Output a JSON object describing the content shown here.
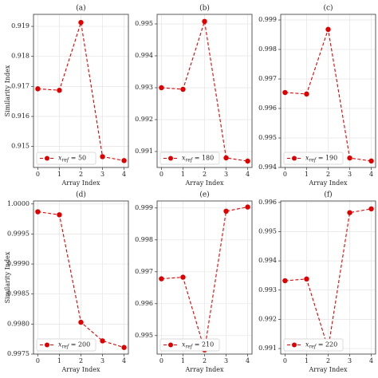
{
  "chart_data": [
    {
      "type": "line",
      "title": "(a)",
      "xlabel": "Array Index",
      "ylabel": "Similarity Index",
      "x": [
        0,
        1,
        2,
        3,
        4
      ],
      "series": [
        {
          "name": "xref = 50",
          "color": "#e00000",
          "values": [
            0.91692,
            0.91687,
            0.91913,
            0.91466,
            0.91453
          ]
        }
      ],
      "xlim": [
        -0.2,
        4.2
      ],
      "ylim": [
        0.9143,
        0.9194
      ],
      "xticks": [
        0,
        1,
        2,
        3,
        4
      ],
      "yticks": [
        0.915,
        0.916,
        0.917,
        0.918,
        0.919
      ],
      "grid": true,
      "legend": "lower left"
    },
    {
      "type": "line",
      "title": "(b)",
      "xlabel": "Array Index",
      "x": [
        0,
        1,
        2,
        3,
        4
      ],
      "series": [
        {
          "name": "xref = 180",
          "color": "#e00000",
          "values": [
            0.993,
            0.99295,
            0.99508,
            0.9908,
            0.9907
          ]
        }
      ],
      "xlim": [
        -0.2,
        4.2
      ],
      "ylim": [
        0.9905,
        0.9953
      ],
      "xticks": [
        0,
        1,
        2,
        3,
        4
      ],
      "yticks": [
        0.991,
        0.992,
        0.993,
        0.994,
        0.995
      ],
      "grid": true,
      "legend": "lower left"
    },
    {
      "type": "line",
      "title": "(c)",
      "xlabel": "Array Index",
      "x": [
        0,
        1,
        2,
        3,
        4
      ],
      "series": [
        {
          "name": "xref = 190",
          "color": "#e00000",
          "values": [
            0.99654,
            0.99649,
            0.99868,
            0.99432,
            0.99422
          ]
        }
      ],
      "xlim": [
        -0.2,
        4.2
      ],
      "ylim": [
        0.994,
        0.99919
      ],
      "xticks": [
        0,
        1,
        2,
        3,
        4
      ],
      "yticks": [
        0.994,
        0.995,
        0.996,
        0.997,
        0.998,
        0.999
      ],
      "grid": true,
      "legend": "lower left"
    },
    {
      "type": "line",
      "title": "(d)",
      "xlabel": "Array Index",
      "ylabel": "Similarity Index",
      "x": [
        0,
        1,
        2,
        3,
        4
      ],
      "series": [
        {
          "name": "xref = 200",
          "color": "#e00000",
          "values": [
            0.99987,
            0.99982,
            0.99803,
            0.99772,
            0.99761
          ]
        }
      ],
      "xlim": [
        -0.2,
        4.2
      ],
      "ylim": [
        0.9975,
        1.00005
      ],
      "xticks": [
        0,
        1,
        2,
        3,
        4
      ],
      "yticks": [
        0.9975,
        {
          "value": 0.998,
          "label": "0.9980"
        },
        0.9985,
        {
          "value": 0.999,
          "label": "0.9990"
        },
        0.9995,
        {
          "value": 1,
          "label": "1.0000"
        }
      ],
      "grid": true,
      "legend": "lower left"
    },
    {
      "type": "line",
      "title": "(e)",
      "xlabel": "Array Index",
      "x": [
        0,
        1,
        2,
        3,
        4
      ],
      "series": [
        {
          "name": "xref = 210",
          "color": "#e00000",
          "values": [
            0.99678,
            0.99683,
            0.99455,
            0.9989,
            0.99903
          ]
        }
      ],
      "xlim": [
        -0.2,
        4.2
      ],
      "ylim": [
        0.99442,
        0.99922
      ],
      "xticks": [
        0,
        1,
        2,
        3,
        4
      ],
      "yticks": [
        0.995,
        0.996,
        0.997,
        0.998,
        0.999
      ],
      "grid": true,
      "legend": "lower left"
    },
    {
      "type": "line",
      "title": "(f)",
      "xlabel": "Array Index",
      "x": [
        0,
        1,
        2,
        3,
        4
      ],
      "series": [
        {
          "name": "xref = 220",
          "color": "#e00000",
          "values": [
            0.99332,
            0.99338,
            0.991,
            0.99565,
            0.99578
          ]
        }
      ],
      "xlim": [
        -0.2,
        4.2
      ],
      "ylim": [
        0.99081,
        0.99605
      ],
      "xticks": [
        0,
        1,
        2,
        3,
        4
      ],
      "yticks": [
        0.991,
        0.992,
        0.993,
        0.994,
        0.995,
        0.996
      ],
      "grid": true,
      "legend": "lower left"
    }
  ]
}
